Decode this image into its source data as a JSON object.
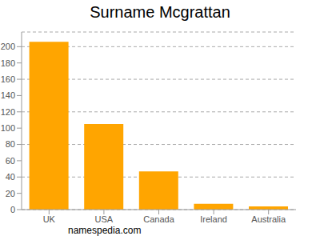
{
  "chart_data": {
    "type": "bar",
    "title": "Surname Mcgrattan",
    "categories": [
      "UK",
      "USA",
      "Canada",
      "Ireland",
      "Australia"
    ],
    "values": [
      206,
      105,
      47,
      7,
      4
    ],
    "color": "#ffa500",
    "ylim": [
      0,
      218
    ],
    "yticks": [
      0,
      20,
      40,
      60,
      80,
      100,
      120,
      140,
      160,
      180,
      200
    ],
    "grid": true,
    "annotations": [
      "namespedia.com"
    ]
  }
}
